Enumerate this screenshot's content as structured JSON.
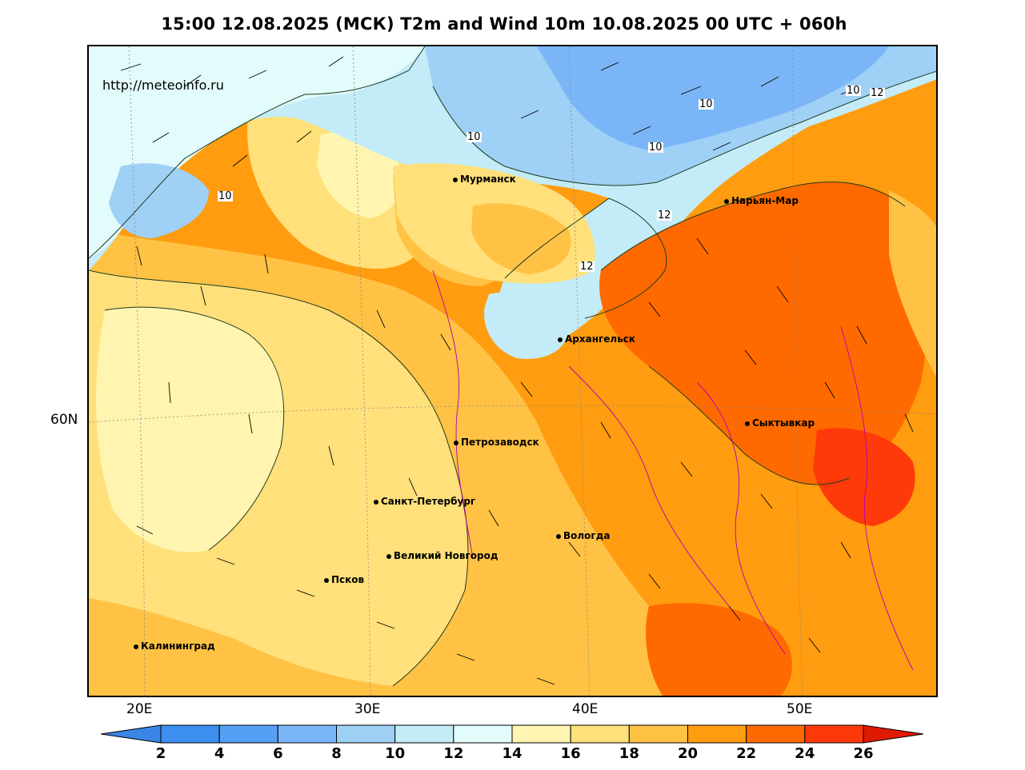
{
  "title": "15:00 12.08.2025 (МСК) T2m and Wind 10m 10.08.2025 00 UTC + 060h",
  "watermark": "http://meteoinfo.ru",
  "lat_labels": [
    "60N"
  ],
  "lon_labels": [
    "20E",
    "30E",
    "40E",
    "50E"
  ],
  "cities": [
    {
      "name": "Мурманск"
    },
    {
      "name": "Нарьян-Мар"
    },
    {
      "name": "Архангельск"
    },
    {
      "name": "Сыктывкар"
    },
    {
      "name": "Петрозаводск"
    },
    {
      "name": "Санкт-Петербург"
    },
    {
      "name": "Вологда"
    },
    {
      "name": "Великий Новгород"
    },
    {
      "name": "Псков"
    },
    {
      "name": "Калининград"
    }
  ],
  "contour_labels": [
    "10",
    "10",
    "10",
    "10",
    "10",
    "12",
    "12",
    "12"
  ],
  "colorbar": {
    "ticks": [
      "2",
      "4",
      "6",
      "8",
      "10",
      "12",
      "14",
      "16",
      "18",
      "20",
      "22",
      "24",
      "26"
    ],
    "colors": [
      "#3a86e6",
      "#3d8ff0",
      "#55a0f5",
      "#7ab6f7",
      "#9fd0f6",
      "#c3ecf8",
      "#e2fbfb",
      "#fff5b0",
      "#ffe07a",
      "#ffc245",
      "#ff9c0f",
      "#ff6a00",
      "#ff3a0a",
      "#e01a00"
    ]
  },
  "palette": {
    "temp_12": "#c3ecf8",
    "temp_14": "#e2fbfb",
    "temp_16": "#fff5b0",
    "temp_18": "#ffe07a",
    "temp_20": "#ffc245",
    "temp_22": "#ff9c0f",
    "temp_24": "#ff6a00",
    "temp_8": "#7ab6f7",
    "temp_10": "#9fd0f6"
  }
}
